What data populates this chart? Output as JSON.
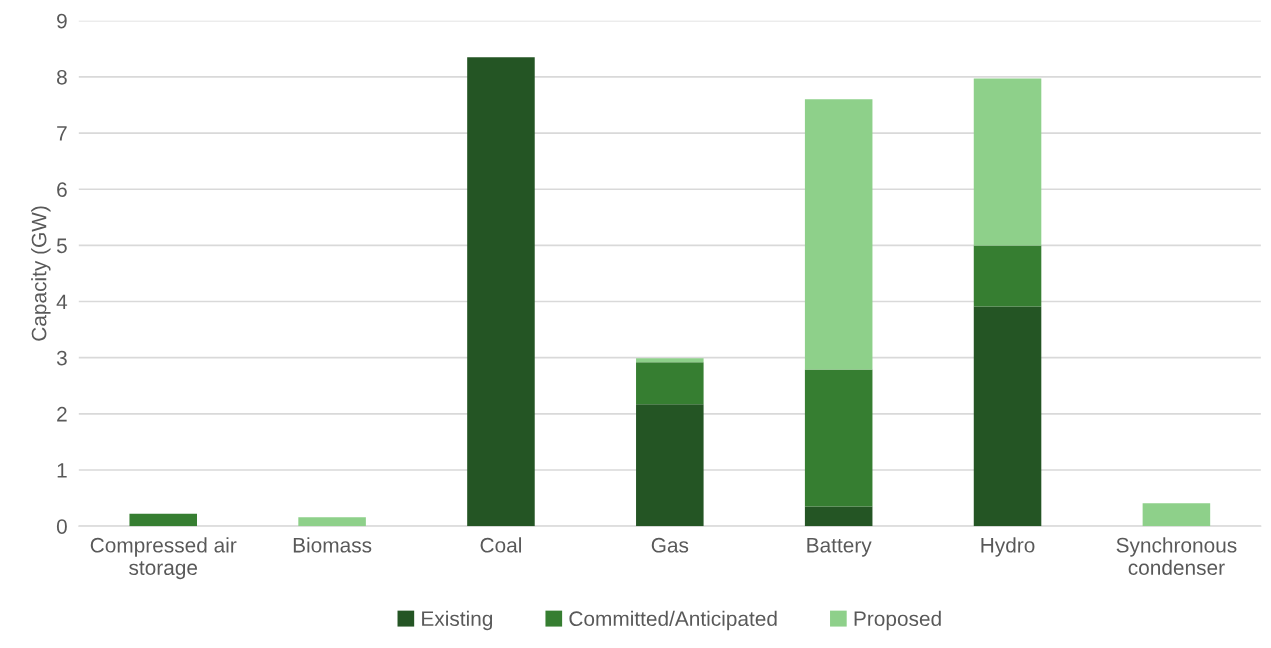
{
  "chart_data": {
    "type": "bar",
    "stacked": true,
    "ylabel": "Capacity (GW)",
    "categories": [
      "Compressed air\nstorage",
      "Biomass",
      "Coal",
      "Gas",
      "Battery",
      "Hydro",
      "Synchronous\ncondenser"
    ],
    "series": [
      {
        "name": "Existing",
        "color": "#245524",
        "values": [
          0,
          0,
          8.35,
          2.17,
          0.35,
          3.91,
          0
        ]
      },
      {
        "name": "Committed/Anticipated",
        "color": "#367e31",
        "values": [
          0.22,
          0,
          0,
          0.75,
          2.44,
          1.09,
          0
        ]
      },
      {
        "name": "Proposed",
        "color": "#8ed08a",
        "values": [
          0,
          0.16,
          0,
          0.07,
          4.81,
          2.97,
          0.41
        ]
      }
    ],
    "ylim": [
      0,
      9
    ],
    "yticks": [
      0,
      1,
      2,
      3,
      4,
      5,
      6,
      7,
      8,
      9
    ],
    "grid": "y",
    "legend": "bottom"
  }
}
